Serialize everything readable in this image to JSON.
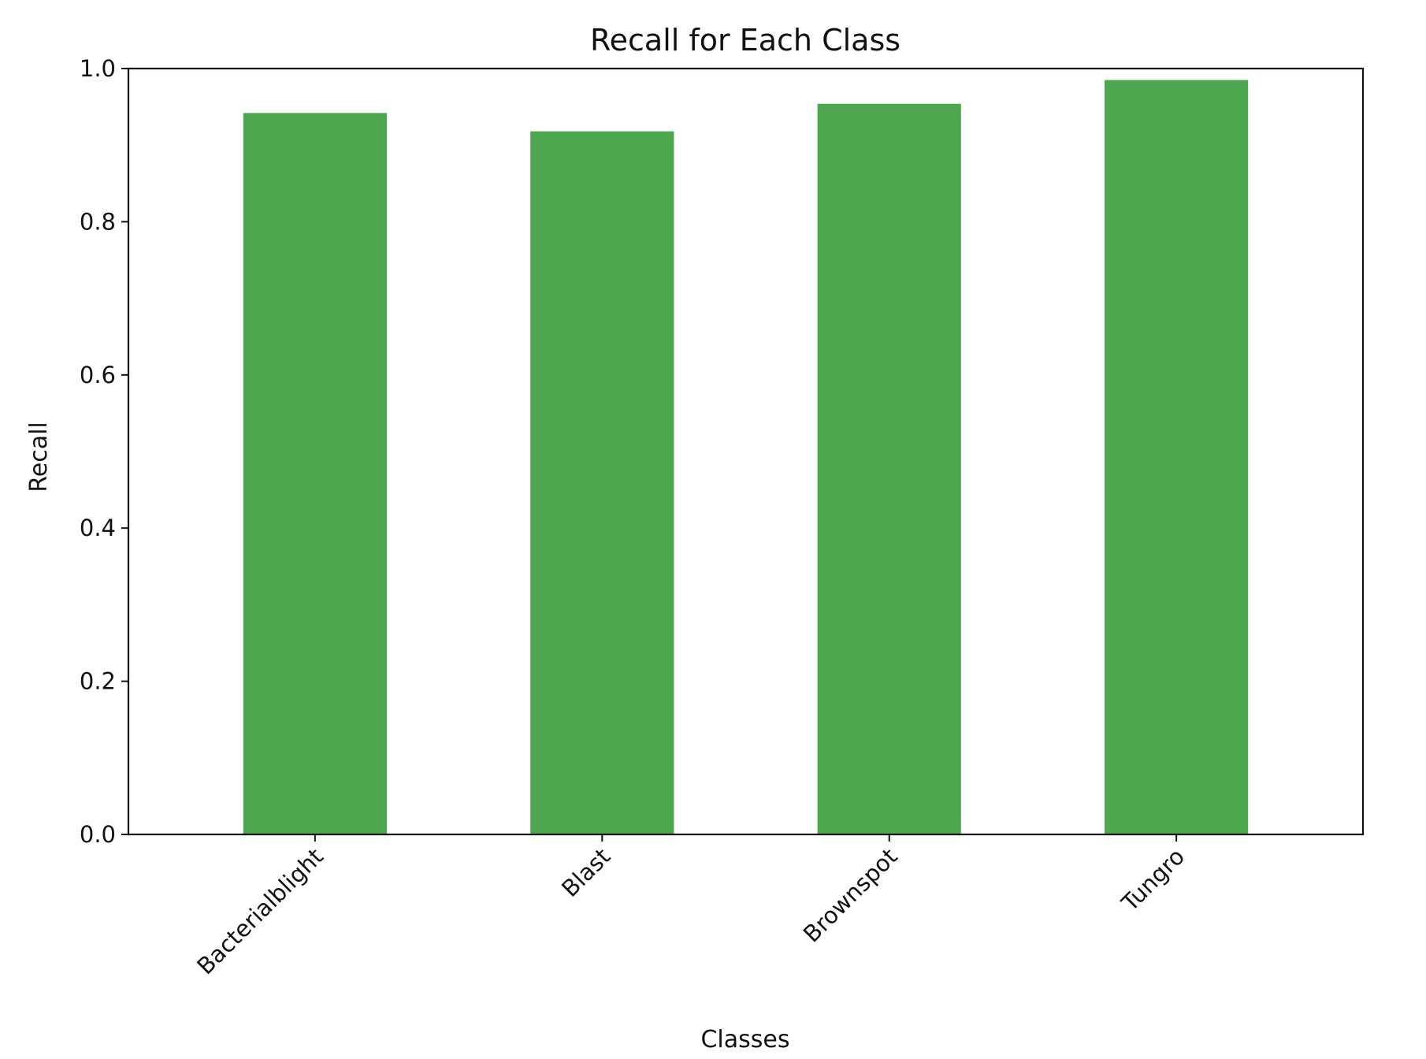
{
  "chart_data": {
    "type": "bar",
    "title": "Recall for Each Class",
    "xlabel": "Classes",
    "ylabel": "Recall",
    "categories": [
      "Bacterialblight",
      "Blast",
      "Brownspot",
      "Tungro"
    ],
    "values": [
      0.942,
      0.918,
      0.954,
      0.985
    ],
    "ylim": [
      0,
      1.0
    ],
    "yticks": [
      {
        "value": 0.0,
        "label": "0.0"
      },
      {
        "value": 0.2,
        "label": "0.2"
      },
      {
        "value": 0.4,
        "label": "0.4"
      },
      {
        "value": 0.6,
        "label": "0.6"
      },
      {
        "value": 0.8,
        "label": "0.8"
      },
      {
        "value": 1.0,
        "label": "1.0"
      }
    ],
    "bar_color": "#4ea64e",
    "grid": false,
    "xtick_rotation_deg": 45
  }
}
